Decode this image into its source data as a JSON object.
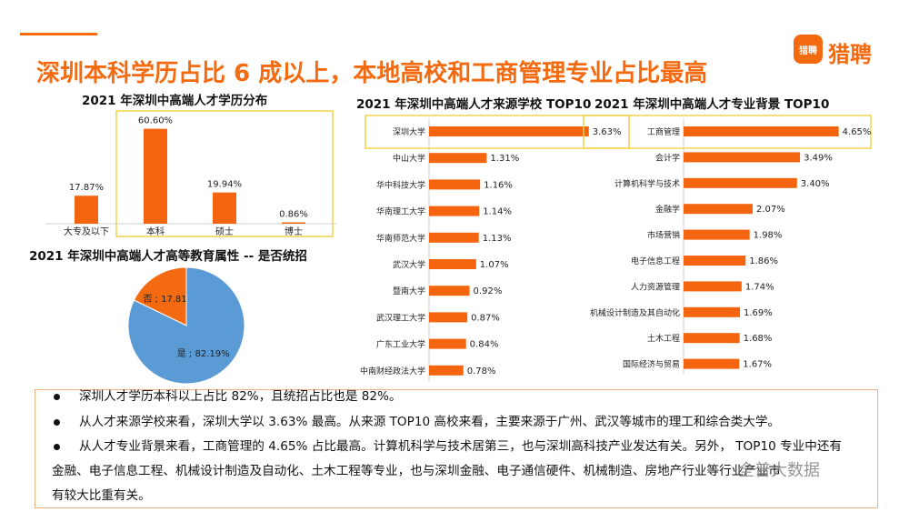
{
  "header": {
    "title": "深圳本科学历占比 6 成以上，本地高校和工商管理专业占比最高",
    "logo_mark": "猎聘",
    "logo_text": "猎聘"
  },
  "colors": {
    "accent": "#f36a10",
    "bar": "#f5650f",
    "highlight_box": "#f2d24b",
    "pie_blue": "#5b9bd5",
    "pie_orange": "#f36a10"
  },
  "chart_data": [
    {
      "type": "bar",
      "title": "2021 年深圳中高端人才学历分布",
      "categories": [
        "大专及以下",
        "本科",
        "硕士",
        "博士"
      ],
      "values": [
        17.87,
        60.6,
        19.94,
        0.86
      ],
      "labels": [
        "17.87%",
        "60.60%",
        "19.94%",
        "0.86%"
      ],
      "ylim": [
        0,
        65
      ],
      "highlighted": [
        "本科",
        "硕士",
        "博士"
      ]
    },
    {
      "type": "pie",
      "title": "2021 年深圳中高端人才高等教育属性 -- 是否统招",
      "slices": [
        {
          "name": "否",
          "value": 17.81,
          "label": "否 ; 17.81%"
        },
        {
          "name": "是",
          "value": 82.19,
          "label": "是 ; 82.19%"
        }
      ]
    },
    {
      "type": "bar",
      "orientation": "horizontal",
      "title": "2021 年深圳中高端人才来源学校 TOP10",
      "categories": [
        "深圳大学",
        "中山大学",
        "华中科技大学",
        "华南理工大学",
        "华南师范大学",
        "武汉大学",
        "暨南大学",
        "武汉理工大学",
        "广东工业大学",
        "中南财经政法大学"
      ],
      "values": [
        3.63,
        1.31,
        1.16,
        1.14,
        1.13,
        1.07,
        0.92,
        0.87,
        0.84,
        0.78
      ],
      "labels": [
        "3.63%",
        "1.31%",
        "1.16%",
        "1.14%",
        "1.13%",
        "1.07%",
        "0.92%",
        "0.87%",
        "0.84%",
        "0.78%"
      ],
      "xlim": [
        0,
        3.8
      ],
      "highlighted": [
        "深圳大学"
      ]
    },
    {
      "type": "bar",
      "orientation": "horizontal",
      "title": "2021 年深圳中高端人才专业背景 TOP10",
      "categories": [
        "工商管理",
        "会计学",
        "计算机科学与技术",
        "金融学",
        "市场营销",
        "电子信息工程",
        "人力资源管理",
        "机械设计制造及其自动化",
        "土木工程",
        "国际经济与贸易"
      ],
      "values": [
        4.65,
        3.49,
        3.4,
        2.07,
        1.98,
        1.86,
        1.74,
        1.69,
        1.68,
        1.67
      ],
      "labels": [
        "4.65%",
        "3.49%",
        "3.40%",
        "2.07%",
        "1.98%",
        "1.86%",
        "1.74%",
        "1.69%",
        "1.68%",
        "1.67%"
      ],
      "xlim": [
        0,
        4.85
      ],
      "highlighted": [
        "工商管理"
      ]
    }
  ],
  "notes": [
    {
      "text": "深圳人才学历本科以上占比 82%，且统招占比也是 82%。"
    },
    {
      "text": "从人才来源学校来看，深圳大学以 3.63% 最高。从来源 TOP10 高校来看，主要来源于广州、武汉等城市的理工和综合类大学。"
    },
    {
      "line1": "从人才专业背景来看，工商管理的 4.65% 占比最高。计算机科学与技术居第三，也与深圳高科技产业发达有关。另外， TOP10 专业中还有",
      "line2": "金融、电子信息工程、机械设计制造及自动化、土木工程等专业，也与深圳金融、电子通信硬件、机械制造、房地产行业等行业产业市",
      "line3": "有较大比重有关。"
    }
  ],
  "watermark": "全普大数据"
}
